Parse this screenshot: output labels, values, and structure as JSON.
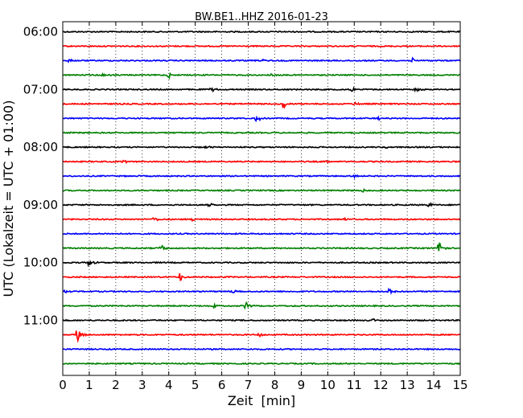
{
  "chart_data": {
    "type": "line",
    "title": "BW.BE1..HHZ 2016-01-23",
    "xlabel": "Zeit  [min]",
    "ylabel": "UTC (Lokalzeit = UTC + 01:00)",
    "xlim": [
      0,
      15
    ],
    "x_ticks": [
      "0",
      "1",
      "2",
      "3",
      "4",
      "5",
      "6",
      "7",
      "8",
      "9",
      "10",
      "11",
      "12",
      "13",
      "14",
      "15"
    ],
    "y_tick_labels": [
      "06:00",
      "07:00",
      "08:00",
      "09:00",
      "10:00",
      "11:00"
    ],
    "grid": "vertical-dotted",
    "colors": [
      "#000000",
      "#ff0000",
      "#0000ff",
      "#008000"
    ],
    "traces": [
      {
        "start": "06:00",
        "events": []
      },
      {
        "start": "06:15",
        "events": []
      },
      {
        "start": "06:30",
        "events": [
          {
            "t": 0.2,
            "amp": 3
          },
          {
            "t": 7.5,
            "amp": 2
          },
          {
            "t": 13.2,
            "amp": 3
          }
        ]
      },
      {
        "start": "06:45",
        "events": [
          {
            "t": 1.5,
            "amp": 2
          },
          {
            "t": 4.0,
            "amp": 4
          },
          {
            "t": 7.8,
            "amp": 3
          }
        ]
      },
      {
        "start": "07:00",
        "events": [
          {
            "t": 5.6,
            "amp": 3
          },
          {
            "t": 10.9,
            "amp": 3
          },
          {
            "t": 13.3,
            "amp": 3
          }
        ]
      },
      {
        "start": "07:15",
        "events": [
          {
            "t": 8.3,
            "amp": 8
          },
          {
            "t": 11.0,
            "amp": 2
          }
        ]
      },
      {
        "start": "07:30",
        "events": [
          {
            "t": 7.3,
            "amp": 6
          },
          {
            "t": 11.9,
            "amp": 2
          }
        ]
      },
      {
        "start": "07:45",
        "events": []
      },
      {
        "start": "08:00",
        "events": [
          {
            "t": 5.4,
            "amp": 2
          },
          {
            "t": 12.2,
            "amp": 2
          }
        ]
      },
      {
        "start": "08:15",
        "events": [
          {
            "t": 2.3,
            "amp": 2
          },
          {
            "t": 10.0,
            "amp": 2
          }
        ]
      },
      {
        "start": "08:30",
        "events": [
          {
            "t": 11.0,
            "amp": 3
          }
        ]
      },
      {
        "start": "08:45",
        "events": [
          {
            "t": 11.3,
            "amp": 2
          }
        ]
      },
      {
        "start": "09:00",
        "events": [
          {
            "t": 5.5,
            "amp": 3
          },
          {
            "t": 13.8,
            "amp": 3
          }
        ]
      },
      {
        "start": "09:15",
        "events": [
          {
            "t": 3.4,
            "amp": 4
          },
          {
            "t": 4.9,
            "amp": 2
          },
          {
            "t": 10.6,
            "amp": 2
          }
        ]
      },
      {
        "start": "09:30",
        "events": []
      },
      {
        "start": "09:45",
        "events": [
          {
            "t": 3.7,
            "amp": 6
          },
          {
            "t": 14.2,
            "amp": 9
          }
        ]
      },
      {
        "start": "10:00",
        "events": [
          {
            "t": 1.0,
            "amp": 6
          }
        ]
      },
      {
        "start": "10:15",
        "events": [
          {
            "t": 4.4,
            "amp": 7
          }
        ]
      },
      {
        "start": "10:30",
        "events": [
          {
            "t": 0.05,
            "amp": 4
          },
          {
            "t": 6.4,
            "amp": 4
          },
          {
            "t": 12.3,
            "amp": 5
          }
        ]
      },
      {
        "start": "10:45",
        "events": [
          {
            "t": 5.7,
            "amp": 3
          },
          {
            "t": 6.9,
            "amp": 5
          }
        ]
      },
      {
        "start": "11:00",
        "events": [
          {
            "t": 11.7,
            "amp": 2
          }
        ]
      },
      {
        "start": "11:15",
        "events": [
          {
            "t": 0.55,
            "amp": 9
          },
          {
            "t": 7.4,
            "amp": 3
          }
        ]
      },
      {
        "start": "11:30",
        "events": []
      },
      {
        "start": "11:45",
        "events": []
      }
    ]
  }
}
